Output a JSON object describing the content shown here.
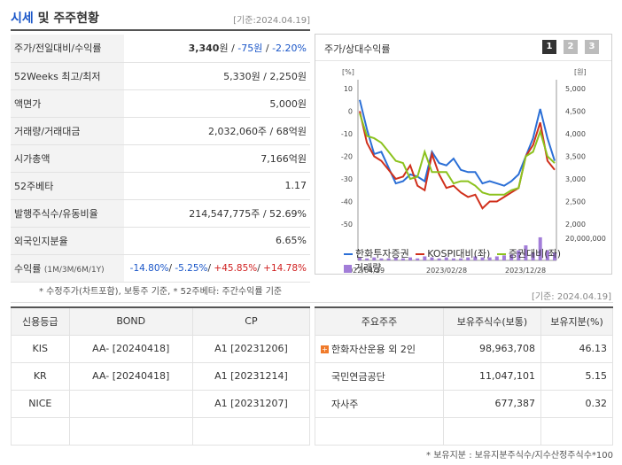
{
  "header": {
    "title_a": "시세",
    "title_b": " 및 주주현황",
    "date": "[기준:2024.04.19]"
  },
  "info": [
    {
      "k": "주가/전일대비/수익률"
    },
    {
      "k": "52Weeks 최고/최저",
      "v": "5,330원 / 2,250원"
    },
    {
      "k": "액면가",
      "v": "5,000원"
    },
    {
      "k": "거래량/거래대금",
      "v": "2,032,060주 / 68억원"
    },
    {
      "k": "시가총액",
      "v": "7,166억원"
    },
    {
      "k": "52주베타",
      "v": "1.17"
    },
    {
      "k": "발행주식수/유동비율",
      "v": "214,547,775주 / 52.69%"
    },
    {
      "k": "외국인지분율",
      "v": "6.65%"
    },
    {
      "k": "수익률",
      "k2": "(1M/3M/6M/1Y)"
    }
  ],
  "price": {
    "price": "3,340",
    "unit": "원",
    "sep": " / ",
    "change": "-75원",
    "sep2": " / ",
    "rate": "-2.20%"
  },
  "returns": {
    "r1": "-14.80%",
    "r2": "-5.25%",
    "r3": "+45.85%",
    "r4": "+14.78%",
    "sep": "/"
  },
  "note1": "* 수정주가(차트포함), 보통주 기준, * 52주베타: 주간수익률 기준",
  "chart": {
    "title": "주가/상대수익률",
    "pages": [
      "1",
      "2",
      "3"
    ],
    "legend": [
      {
        "label": "한화투자증권",
        "color": "#2b6fd6"
      },
      {
        "label": "KOSPI대비(좌)",
        "color": "#d0301c"
      },
      {
        "label": "증권대비(좌)",
        "color": "#8cc21e"
      },
      {
        "label": "거래량",
        "color": "#a27dd8"
      }
    ]
  },
  "chart_data": {
    "type": "line",
    "left_unit": "[%]",
    "right_unit": "[원]",
    "left_ticks": [
      "10",
      "0",
      "-10",
      "-20",
      "-30",
      "-40",
      "-50"
    ],
    "right_ticks": [
      "5,000",
      "4,500",
      "4,000",
      "3,500",
      "3,000",
      "2,500",
      "2,000"
    ],
    "volume_tick": "20,000,000",
    "x_labels": [
      "2022/04/29",
      "2023/02/28",
      "2023/12/28"
    ],
    "ylim_left": [
      -50,
      10
    ],
    "ylim_right": [
      2000,
      5000
    ],
    "series": [
      {
        "name": "한화투자증권",
        "axis": "right",
        "values": [
          4750,
          4100,
          3550,
          3600,
          3250,
          2900,
          2950,
          3100,
          3050,
          2950,
          3600,
          3350,
          3300,
          3450,
          3200,
          3150,
          3150,
          2900,
          2950,
          2900,
          2850,
          2950,
          3100,
          3500,
          3900,
          4550,
          3900,
          3400
        ]
      },
      {
        "name": "KOSPI대비(좌)",
        "axis": "left",
        "values": [
          0,
          -14,
          -20,
          -22,
          -26,
          -30,
          -29,
          -24,
          -33,
          -35,
          -19,
          -28,
          -34,
          -33,
          -36,
          -38,
          -37,
          -43,
          -40,
          -40,
          -38,
          -36,
          -34,
          -20,
          -15,
          -5,
          -22,
          -26
        ]
      },
      {
        "name": "증권대비(좌)",
        "axis": "left",
        "values": [
          -1,
          -11,
          -12,
          -14,
          -18,
          -22,
          -23,
          -30,
          -29,
          -18,
          -27,
          -27,
          -27,
          -32,
          -31,
          -31,
          -33,
          -36,
          -37,
          -37,
          -37,
          -35,
          -34,
          -20,
          -18,
          -9,
          -20,
          -23
        ]
      }
    ],
    "volume": [
      0.3,
      0.2,
      0.3,
      0.2,
      0.2,
      0.3,
      0.2,
      0.3,
      0.2,
      0.4,
      0.3,
      0.2,
      0.3,
      0.2,
      0.2,
      0.3,
      0.4,
      0.3,
      0.3,
      0.4,
      0.5,
      0.6,
      1.0,
      1.5,
      0.8,
      2.3,
      1.0,
      0.8
    ],
    "volume_max": 3
  },
  "date2": "[기준: 2024.04.19]",
  "credit": {
    "headers": [
      "신용등급",
      "BOND",
      "CP"
    ],
    "rows": [
      [
        "KIS",
        "AA-  [20240418]",
        "A1  [20231206]"
      ],
      [
        "KR",
        "AA-  [20240418]",
        "A1  [20231214]"
      ],
      [
        "NICE",
        "",
        "A1  [20231207]"
      ],
      [
        "",
        "",
        ""
      ]
    ]
  },
  "holders": {
    "headers": [
      "주요주주",
      "보유주식수(보통)",
      "보유지분(%)"
    ],
    "rows": [
      [
        "한화자산운용 외 2인",
        "98,963,708",
        "46.13"
      ],
      [
        "국민연금공단",
        "11,047,101",
        "5.15"
      ],
      [
        "자사주",
        "677,387",
        "0.32"
      ],
      [
        "",
        "",
        ""
      ]
    ]
  },
  "note2": "* 보유지분 : 보유지분주식수/지수산정주식수*100"
}
